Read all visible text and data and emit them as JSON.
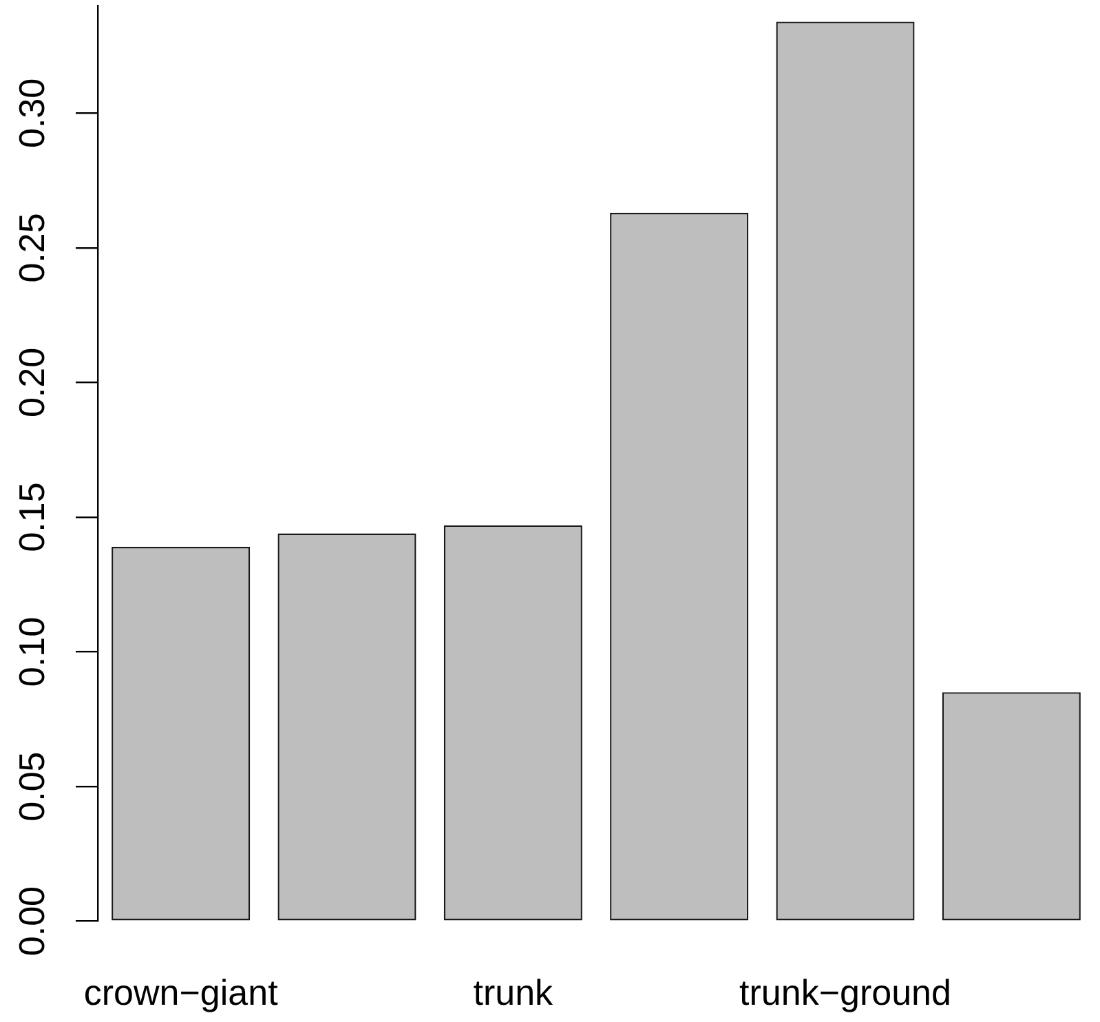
{
  "chart_data": {
    "type": "bar",
    "categories": [
      "crown−giant",
      null,
      "trunk",
      null,
      "trunk−ground",
      null
    ],
    "values": [
      0.139,
      0.144,
      0.147,
      0.263,
      0.334,
      0.085
    ],
    "color": "#bebebe",
    "ylim": [
      0,
      0.34
    ],
    "yticks": [
      {
        "value": 0,
        "label": "0.00"
      },
      0.05,
      {
        "value": 0.1,
        "label": "0.10"
      },
      0.15,
      {
        "value": 0.2,
        "label": "0.20"
      },
      0.25,
      {
        "value": 0.3,
        "label": "0.30"
      }
    ],
    "grid": false
  }
}
